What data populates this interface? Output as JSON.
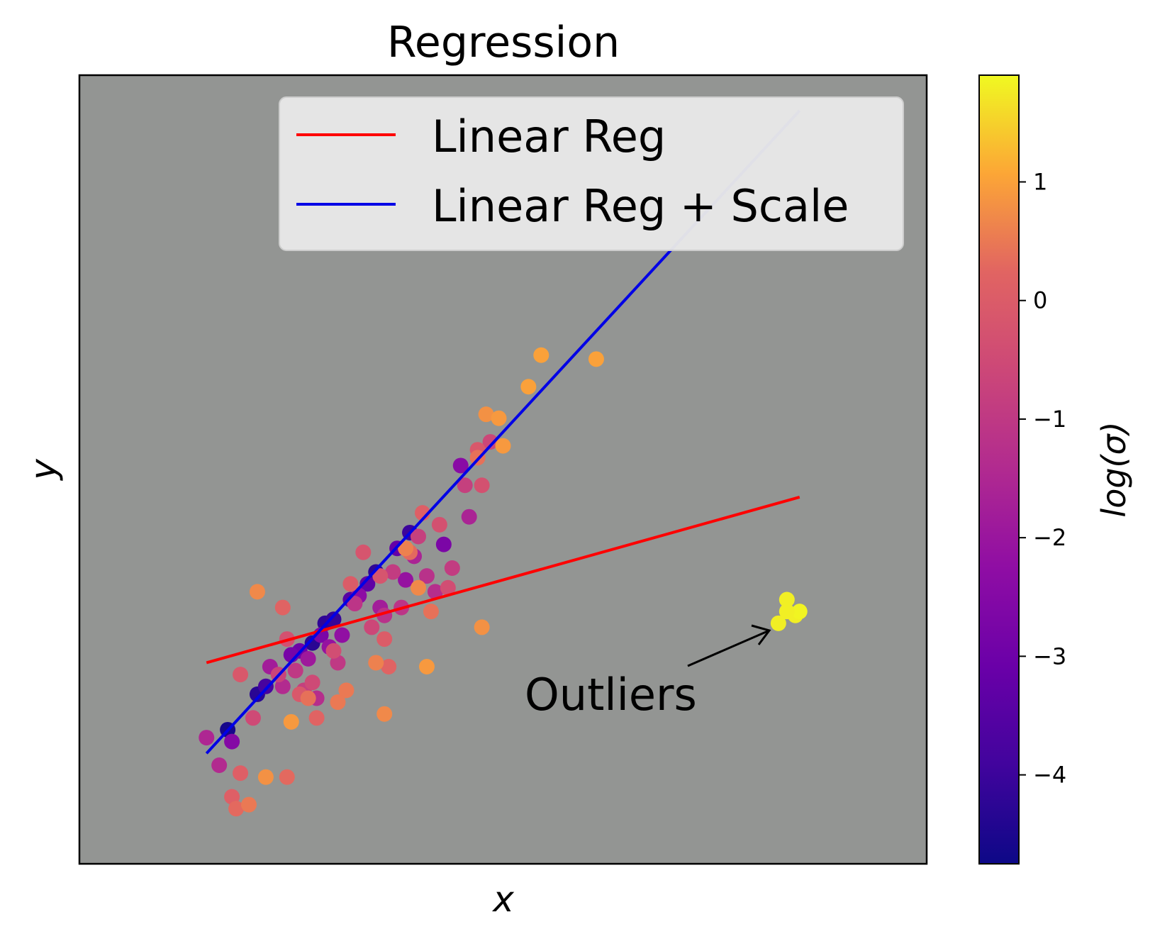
{
  "chart_data": {
    "type": "scatter",
    "title": "Regression",
    "xlabel": "x",
    "ylabel": "y",
    "xlim": [
      0,
      100
    ],
    "ylim": [
      0,
      100
    ],
    "background": "#939593",
    "colormap": "plasma",
    "colorbar": {
      "label": "log(σ)",
      "range": [
        -4.75,
        1.9
      ],
      "ticks": [
        1,
        0,
        -1,
        -2,
        -3,
        -4
      ],
      "tick_labels": [
        "1",
        "0",
        "−1",
        "−2",
        "−3",
        "−4"
      ]
    },
    "legend": {
      "position": "top-right",
      "entries": [
        {
          "label": "Linear Reg",
          "color": "#ff0000"
        },
        {
          "label": "Linear Reg + Scale",
          "color": "#0000e6"
        }
      ]
    },
    "series": [
      {
        "name": "Linear Reg",
        "kind": "line",
        "color": "#ff0000",
        "x": [
          15,
          85
        ],
        "y": [
          25.5,
          46.5
        ]
      },
      {
        "name": "Linear Reg + Scale",
        "kind": "line",
        "color": "#0000e6",
        "x": [
          15,
          85
        ],
        "y": [
          14,
          95.5
        ]
      }
    ],
    "points": [
      {
        "x": 17.5,
        "y": 17,
        "c": -4.6
      },
      {
        "x": 21,
        "y": 21.5,
        "c": -4.3
      },
      {
        "x": 27.5,
        "y": 28,
        "c": -4.3
      },
      {
        "x": 29,
        "y": 30.5,
        "c": -4.2
      },
      {
        "x": 30,
        "y": 31,
        "c": -4.1
      },
      {
        "x": 35,
        "y": 37,
        "c": -4.2
      },
      {
        "x": 39,
        "y": 42,
        "c": -4.0
      },
      {
        "x": 22,
        "y": 22.5,
        "c": -3.8
      },
      {
        "x": 32,
        "y": 33.5,
        "c": -3.5
      },
      {
        "x": 34,
        "y": 35.5,
        "c": -3.3
      },
      {
        "x": 37.5,
        "y": 40,
        "c": -3.2
      },
      {
        "x": 26,
        "y": 27,
        "c": -3.0
      },
      {
        "x": 25,
        "y": 26.5,
        "c": -2.8
      },
      {
        "x": 28.5,
        "y": 29,
        "c": -2.7
      },
      {
        "x": 43,
        "y": 40.5,
        "c": -2.7
      },
      {
        "x": 18,
        "y": 15.5,
        "c": -2.5
      },
      {
        "x": 45,
        "y": 50.5,
        "c": -2.4
      },
      {
        "x": 33,
        "y": 34,
        "c": -2.3
      },
      {
        "x": 31,
        "y": 29,
        "c": -2.2
      },
      {
        "x": 38.5,
        "y": 36,
        "c": -2.1
      },
      {
        "x": 29.5,
        "y": 27.5,
        "c": -2.1
      },
      {
        "x": 27,
        "y": 26,
        "c": -1.9
      },
      {
        "x": 35.5,
        "y": 32.5,
        "c": -1.8
      },
      {
        "x": 22.5,
        "y": 25,
        "c": -1.8
      },
      {
        "x": 39.5,
        "y": 39,
        "c": -1.6
      },
      {
        "x": 46,
        "y": 44,
        "c": -1.6
      },
      {
        "x": 15,
        "y": 16,
        "c": -1.5
      },
      {
        "x": 16.5,
        "y": 12.5,
        "c": -1.4
      },
      {
        "x": 24,
        "y": 22.5,
        "c": -1.4
      },
      {
        "x": 28,
        "y": 21,
        "c": -1.3
      },
      {
        "x": 42,
        "y": 34.5,
        "c": -1.3
      },
      {
        "x": 36,
        "y": 31.5,
        "c": -1.2
      },
      {
        "x": 41,
        "y": 36.5,
        "c": -1.2
      },
      {
        "x": 38,
        "y": 32.5,
        "c": -1.1
      },
      {
        "x": 32.5,
        "y": 33,
        "c": -1.1
      },
      {
        "x": 25.5,
        "y": 24.5,
        "c": -1.0
      },
      {
        "x": 30.5,
        "y": 25.5,
        "c": -1.0
      },
      {
        "x": 37,
        "y": 37,
        "c": -0.9
      },
      {
        "x": 44,
        "y": 37.5,
        "c": -0.9
      },
      {
        "x": 40,
        "y": 41.5,
        "c": -0.8
      },
      {
        "x": 45.5,
        "y": 48,
        "c": -0.8
      },
      {
        "x": 26.5,
        "y": 22,
        "c": -0.8
      },
      {
        "x": 23.5,
        "y": 24,
        "c": -0.7
      },
      {
        "x": 34.5,
        "y": 30,
        "c": -0.6
      },
      {
        "x": 48.5,
        "y": 53.5,
        "c": -0.6
      },
      {
        "x": 20.5,
        "y": 18.5,
        "c": -0.5
      },
      {
        "x": 27.5,
        "y": 23,
        "c": -0.5
      },
      {
        "x": 43.5,
        "y": 35,
        "c": -0.4
      },
      {
        "x": 30,
        "y": 27,
        "c": -0.4
      },
      {
        "x": 24.5,
        "y": 28.5,
        "c": -0.3
      },
      {
        "x": 42.5,
        "y": 43,
        "c": -0.3
      },
      {
        "x": 47.5,
        "y": 48,
        "c": -0.3
      },
      {
        "x": 33.5,
        "y": 39.5,
        "c": -0.2
      },
      {
        "x": 35.5,
        "y": 36.5,
        "c": -0.2
      },
      {
        "x": 19,
        "y": 24,
        "c": -0.1
      },
      {
        "x": 26,
        "y": 21.5,
        "c": -0.1
      },
      {
        "x": 47,
        "y": 52.5,
        "c": -0.1
      },
      {
        "x": 32,
        "y": 35.5,
        "c": 0.0
      },
      {
        "x": 36,
        "y": 28.5,
        "c": 0.0
      },
      {
        "x": 18,
        "y": 8.5,
        "c": 0.1
      },
      {
        "x": 19,
        "y": 11.5,
        "c": 0.1
      },
      {
        "x": 40.5,
        "y": 44.5,
        "c": 0.1
      },
      {
        "x": 28,
        "y": 18.5,
        "c": 0.2
      },
      {
        "x": 36.5,
        "y": 25,
        "c": 0.2
      },
      {
        "x": 24,
        "y": 32.5,
        "c": 0.2
      },
      {
        "x": 18.5,
        "y": 7,
        "c": 0.3
      },
      {
        "x": 24.5,
        "y": 11,
        "c": 0.3
      },
      {
        "x": 39,
        "y": 39.5,
        "c": 0.3
      },
      {
        "x": 27,
        "y": 21,
        "c": 0.4
      },
      {
        "x": 41.5,
        "y": 32,
        "c": 0.4
      },
      {
        "x": 47,
        "y": 51.5,
        "c": 0.4
      },
      {
        "x": 20,
        "y": 7.5,
        "c": 0.5
      },
      {
        "x": 31.5,
        "y": 22,
        "c": 0.5
      },
      {
        "x": 30.5,
        "y": 20.5,
        "c": 0.5
      },
      {
        "x": 38.5,
        "y": 40,
        "c": 0.6
      },
      {
        "x": 35,
        "y": 25.5,
        "c": 0.6
      },
      {
        "x": 21,
        "y": 34.5,
        "c": 0.7
      },
      {
        "x": 36,
        "y": 19,
        "c": 0.7
      },
      {
        "x": 40,
        "y": 35,
        "c": 0.7
      },
      {
        "x": 48,
        "y": 57,
        "c": 0.8
      },
      {
        "x": 22,
        "y": 11,
        "c": 0.8
      },
      {
        "x": 47.5,
        "y": 30,
        "c": 0.8
      },
      {
        "x": 25,
        "y": 18,
        "c": 0.9
      },
      {
        "x": 50,
        "y": 53,
        "c": 0.9
      },
      {
        "x": 54.5,
        "y": 64.5,
        "c": 1.0
      },
      {
        "x": 61,
        "y": 64,
        "c": 1.0
      },
      {
        "x": 53,
        "y": 60.5,
        "c": 1.0
      },
      {
        "x": 49.5,
        "y": 56.5,
        "c": 0.9
      },
      {
        "x": 41,
        "y": 25,
        "c": 0.9
      },
      {
        "x": 83.5,
        "y": 33.5,
        "c": 1.8
      },
      {
        "x": 84.5,
        "y": 31.5,
        "c": 1.8
      },
      {
        "x": 82.5,
        "y": 30.5,
        "c": 1.8
      },
      {
        "x": 85,
        "y": 32,
        "c": 1.85
      },
      {
        "x": 83.5,
        "y": 32,
        "c": 1.8
      }
    ],
    "annotation": {
      "text": "Outliers",
      "x": 53,
      "y": 22,
      "arrow_to": [
        81.5,
        29
      ]
    }
  }
}
